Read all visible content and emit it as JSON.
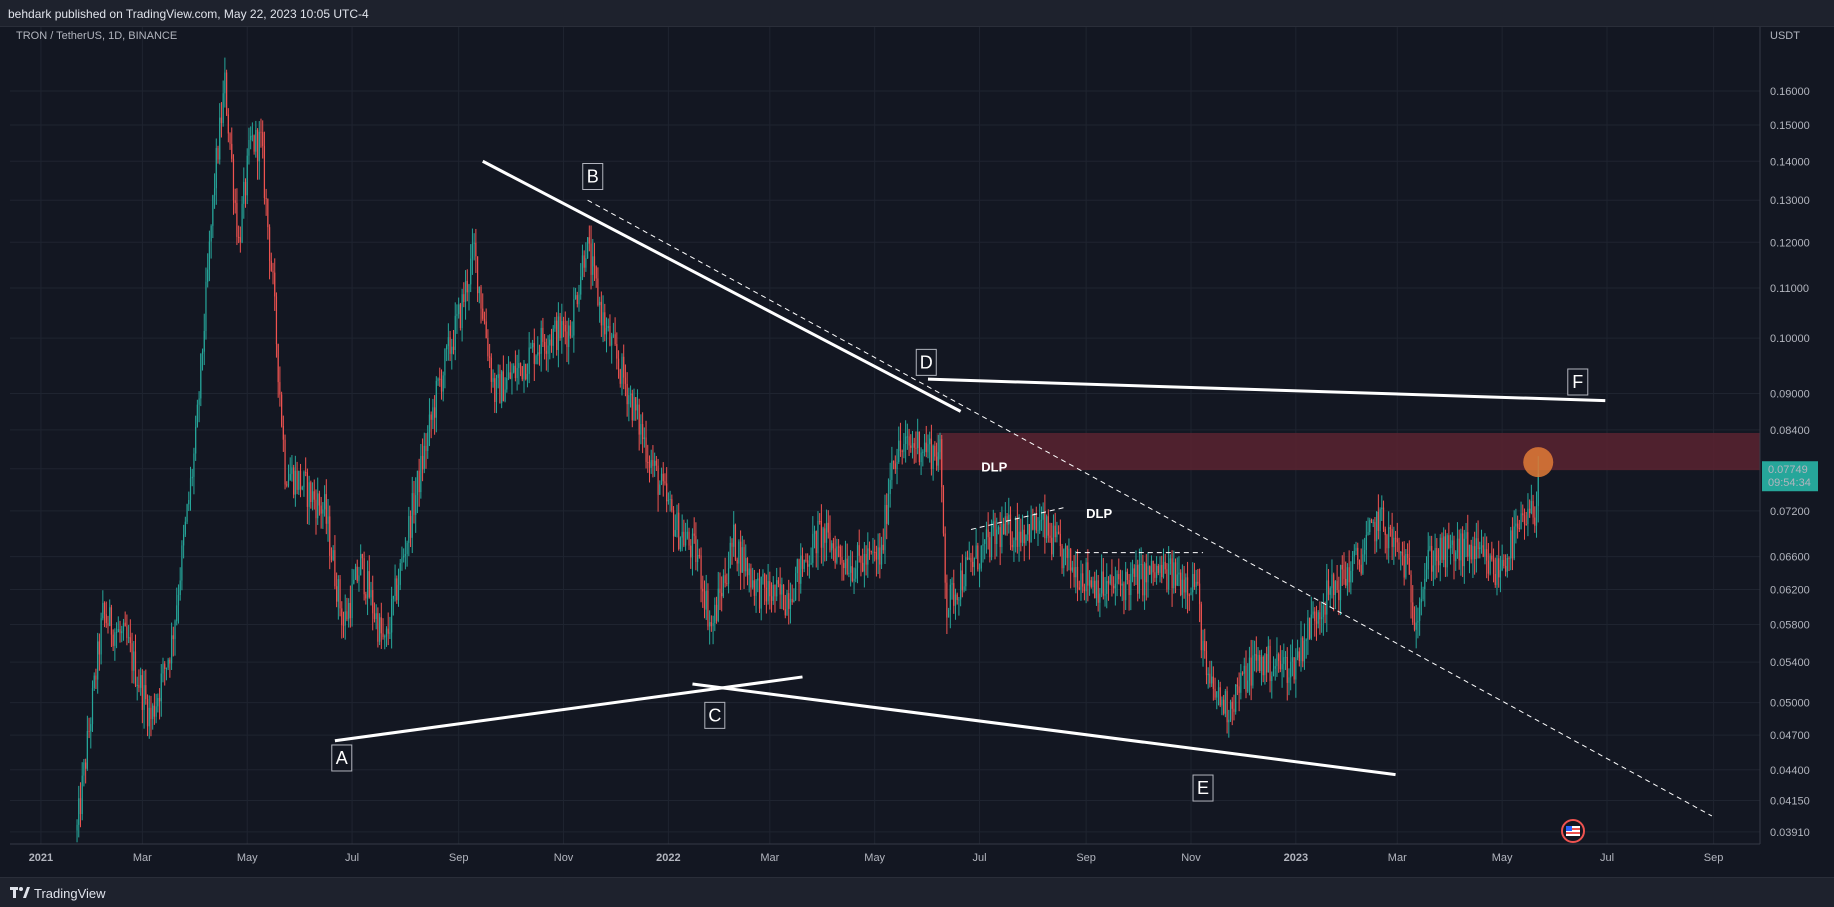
{
  "header": {
    "publish_text": "behdark published on TradingView.com, May 22, 2023 10:05 UTC-4"
  },
  "footer": {
    "brand": "TradingView",
    "logo_icon": "tradingview-logo-icon"
  },
  "chart_data": {
    "type": "candlestick",
    "symbol_label": "TRON / TetherUS, 1D, BINANCE",
    "currency_label": "USDT",
    "scale": "log",
    "ylim": [
      0.0385,
      0.178
    ],
    "xlim": [
      "2020-12-14",
      "2023-09-28"
    ],
    "y_ticks": [
      "0.16000",
      "0.15000",
      "0.14000",
      "0.13000",
      "0.12000",
      "0.11000",
      "0.10000",
      "0.09000",
      "0.08400",
      "0.07800",
      "0.07200",
      "0.06600",
      "0.06200",
      "0.05800",
      "0.05400",
      "0.05000",
      "0.04700",
      "0.04400",
      "0.04150",
      "0.03910"
    ],
    "x_ticks": [
      {
        "label": "2021",
        "date": "2021-01-01"
      },
      {
        "label": "Mar",
        "date": "2021-03-01"
      },
      {
        "label": "May",
        "date": "2021-05-01"
      },
      {
        "label": "Jul",
        "date": "2021-07-01"
      },
      {
        "label": "Sep",
        "date": "2021-09-01"
      },
      {
        "label": "Nov",
        "date": "2021-11-01"
      },
      {
        "label": "2022",
        "date": "2022-01-01"
      },
      {
        "label": "Mar",
        "date": "2022-03-01"
      },
      {
        "label": "May",
        "date": "2022-05-01"
      },
      {
        "label": "Jul",
        "date": "2022-07-01"
      },
      {
        "label": "Sep",
        "date": "2022-09-01"
      },
      {
        "label": "Nov",
        "date": "2022-11-01"
      },
      {
        "label": "2023",
        "date": "2023-01-01"
      },
      {
        "label": "Mar",
        "date": "2023-03-01"
      },
      {
        "label": "May",
        "date": "2023-05-01"
      },
      {
        "label": "Jul",
        "date": "2023-07-01"
      },
      {
        "label": "Sep",
        "date": "2023-09-01"
      }
    ],
    "price_path": [
      [
        "2021-01-22",
        0.0392
      ],
      [
        "2021-02-06",
        0.059
      ],
      [
        "2021-02-20",
        0.056
      ],
      [
        "2021-03-06",
        0.0485
      ],
      [
        "2021-03-18",
        0.056
      ],
      [
        "2021-04-01",
        0.082
      ],
      [
        "2021-04-12",
        0.135
      ],
      [
        "2021-04-18",
        0.162
      ],
      [
        "2021-04-26",
        0.12
      ],
      [
        "2021-05-03",
        0.145
      ],
      [
        "2021-05-09",
        0.145
      ],
      [
        "2021-05-16",
        0.11
      ],
      [
        "2021-05-23",
        0.078
      ],
      [
        "2021-06-01",
        0.076
      ],
      [
        "2021-06-15",
        0.072
      ],
      [
        "2021-06-26",
        0.058
      ],
      [
        "2021-07-06",
        0.065
      ],
      [
        "2021-07-20",
        0.0555
      ],
      [
        "2021-08-05",
        0.072
      ],
      [
        "2021-08-20",
        0.091
      ],
      [
        "2021-09-02",
        0.105
      ],
      [
        "2021-09-10",
        0.118
      ],
      [
        "2021-09-22",
        0.09
      ],
      [
        "2021-10-08",
        0.095
      ],
      [
        "2021-10-20",
        0.1
      ],
      [
        "2021-11-05",
        0.102
      ],
      [
        "2021-11-14",
        0.12
      ],
      [
        "2021-11-25",
        0.102
      ],
      [
        "2021-12-08",
        0.091
      ],
      [
        "2021-12-22",
        0.079
      ],
      [
        "2022-01-05",
        0.07
      ],
      [
        "2022-01-18",
        0.066
      ],
      [
        "2022-01-26",
        0.0575
      ],
      [
        "2022-02-08",
        0.068
      ],
      [
        "2022-02-22",
        0.062
      ],
      [
        "2022-03-10",
        0.061
      ],
      [
        "2022-03-30",
        0.069
      ],
      [
        "2022-04-18",
        0.065
      ],
      [
        "2022-05-05",
        0.066
      ],
      [
        "2022-05-11",
        0.08
      ],
      [
        "2022-05-26",
        0.082
      ],
      [
        "2022-06-08",
        0.08
      ],
      [
        "2022-06-12",
        0.06
      ],
      [
        "2022-06-22",
        0.064
      ],
      [
        "2022-07-12",
        0.069
      ],
      [
        "2022-08-06",
        0.07
      ],
      [
        "2022-08-22",
        0.065
      ],
      [
        "2022-09-12",
        0.062
      ],
      [
        "2022-10-12",
        0.064
      ],
      [
        "2022-11-04",
        0.063
      ],
      [
        "2022-11-10",
        0.052
      ],
      [
        "2022-11-22",
        0.0495
      ],
      [
        "2022-12-08",
        0.054
      ],
      [
        "2022-12-30",
        0.0535
      ],
      [
        "2023-01-14",
        0.06
      ],
      [
        "2023-02-08",
        0.066
      ],
      [
        "2023-02-18",
        0.071
      ],
      [
        "2023-03-06",
        0.065
      ],
      [
        "2023-03-11",
        0.059
      ],
      [
        "2023-03-20",
        0.066
      ],
      [
        "2023-04-12",
        0.067
      ],
      [
        "2023-04-28",
        0.064
      ],
      [
        "2023-05-10",
        0.069
      ],
      [
        "2023-05-20",
        0.072
      ],
      [
        "2023-05-22",
        0.0775
      ]
    ],
    "trend_lines": [
      {
        "from": [
          "2021-09-15",
          0.14
        ],
        "to": [
          "2022-06-20",
          0.087
        ],
        "style": "solid"
      },
      {
        "from": [
          "2022-06-01",
          0.0925
        ],
        "to": [
          "2023-06-30",
          0.0888
        ],
        "style": "solid"
      },
      {
        "from": [
          "2021-06-21",
          0.0465
        ],
        "to": [
          "2022-03-20",
          0.0525
        ],
        "style": "solid"
      },
      {
        "from": [
          "2022-01-15",
          0.0518
        ],
        "to": [
          "2023-02-28",
          0.0436
        ],
        "style": "solid"
      },
      {
        "from": [
          "2021-11-15",
          0.13
        ],
        "to": [
          "2023-08-31",
          0.0403
        ],
        "style": "dashed"
      },
      {
        "from": [
          "2022-06-26",
          0.0695
        ],
        "to": [
          "2022-08-20",
          0.0725
        ],
        "style": "dashed"
      },
      {
        "from": [
          "2022-08-26",
          0.0665
        ],
        "to": [
          "2022-11-08",
          0.0665
        ],
        "style": "dashed"
      }
    ],
    "zone": {
      "from": "2022-06-06",
      "to": "2023-09-28",
      "low": 0.0778,
      "high": 0.0835,
      "color": "#5b2330"
    },
    "point_labels": [
      {
        "label": "A",
        "date": "2021-06-25",
        "price": 0.045
      },
      {
        "label": "B",
        "date": "2021-11-18",
        "price": 0.136
      },
      {
        "label": "C",
        "date": "2022-01-28",
        "price": 0.0488
      },
      {
        "label": "D",
        "date": "2022-05-31",
        "price": 0.0955
      },
      {
        "label": "E",
        "date": "2022-11-08",
        "price": 0.0425
      },
      {
        "label": "F",
        "date": "2023-06-14",
        "price": 0.092
      }
    ],
    "text_labels": [
      {
        "label": "DLP",
        "date": "2022-07-02",
        "price": 0.0776
      },
      {
        "label": "DLP",
        "date": "2022-09-01",
        "price": 0.071
      }
    ],
    "highlight_circle": {
      "date": "2023-05-22",
      "price": 0.079,
      "color": "#e07a36"
    },
    "current_price": {
      "value": "0.07749",
      "countdown": "09:54:34",
      "color": "#26a69a"
    },
    "colors": {
      "up": "#26a69a",
      "down": "#ef5350",
      "background": "#131722",
      "grid": "#1f2430",
      "text": "#b2b5be"
    }
  }
}
